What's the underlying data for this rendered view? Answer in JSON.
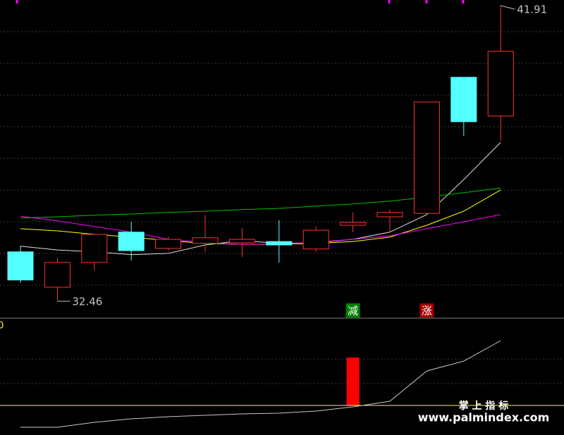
{
  "chart_data": {
    "type": "candlestick",
    "open": [
      34.04,
      32.91,
      33.7,
      34.67,
      34.15,
      34.31,
      34.33,
      34.37,
      34.13,
      34.89,
      35.16,
      35.27,
      39.62,
      38.38
    ],
    "high": [
      34.22,
      33.86,
      34.6,
      35.0,
      34.53,
      35.21,
      34.8,
      35.05,
      34.85,
      35.3,
      35.39,
      38.83,
      39.62,
      41.91
    ],
    "low": [
      33.05,
      32.46,
      33.45,
      33.76,
      34.08,
      34.04,
      33.88,
      33.7,
      34.04,
      34.67,
      34.67,
      35.27,
      37.75,
      37.59
    ],
    "close": [
      33.14,
      33.7,
      34.6,
      34.08,
      34.44,
      34.49,
      34.44,
      34.26,
      34.73,
      34.98,
      35.3,
      38.83,
      38.2,
      40.45
    ],
    "up_color": "#ff3232",
    "down_color": "#54ffff",
    "ylim": [
      31.92,
      42.09
    ],
    "moving_averages": [
      {
        "color": "#e0e0e0",
        "values": [
          34.22,
          34.1,
          34.04,
          33.95,
          33.99,
          34.26,
          34.4,
          34.31,
          34.33,
          34.44,
          34.67,
          35.23,
          36.35,
          37.54
        ]
      },
      {
        "color": "#ffff00",
        "values": [
          34.78,
          34.71,
          34.6,
          34.51,
          34.4,
          34.31,
          34.28,
          34.28,
          34.31,
          34.37,
          34.51,
          34.89,
          35.34,
          36.02
        ]
      },
      {
        "color": "#ff00ff",
        "values": [
          35.18,
          35.03,
          34.85,
          34.67,
          34.44,
          34.33,
          34.28,
          34.28,
          34.35,
          34.44,
          34.55,
          34.78,
          35.0,
          35.23
        ]
      },
      {
        "color": "#00c000",
        "values": [
          35.12,
          35.16,
          35.21,
          35.25,
          35.3,
          35.34,
          35.39,
          35.43,
          35.5,
          35.57,
          35.66,
          35.79,
          35.93,
          36.08
        ]
      }
    ],
    "max_label": 41.91,
    "min_label": 32.46,
    "signals": [
      null,
      null,
      null,
      null,
      null,
      null,
      null,
      null,
      null,
      "减",
      null,
      "涨",
      null,
      null
    ],
    "signal_colors": {
      "减": "#008000",
      "涨": "#a00000"
    },
    "indicator": {
      "label": "0",
      "ylim": [
        -42,
        121
      ],
      "line_color": "#c8c8c8",
      "values": [
        -31,
        -31,
        -24,
        -19,
        -16,
        -14,
        -12,
        -11,
        -8,
        -2,
        6,
        49,
        63,
        92
      ],
      "baseline": 0,
      "baseline_color": "#ffff00",
      "bars": [
        null,
        null,
        null,
        null,
        null,
        null,
        null,
        null,
        null,
        68,
        null,
        null,
        null,
        null
      ],
      "bar_color": "#ff0000"
    },
    "watermark": {
      "title": "掌 上 指 标",
      "url": "www.palmindex.com"
    }
  }
}
